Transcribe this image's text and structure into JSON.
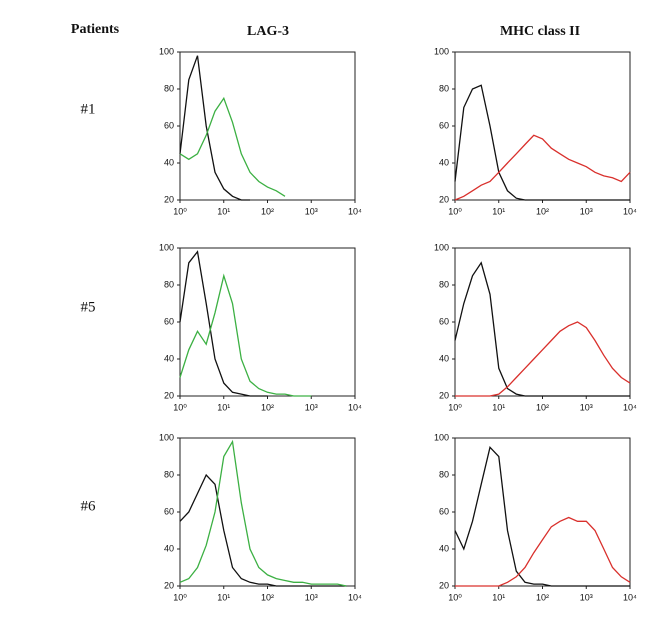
{
  "figure": {
    "corner_label": "Patients",
    "columns": [
      "LAG-3",
      "MHC class II"
    ],
    "rows": [
      "#1",
      "#5",
      "#6"
    ]
  },
  "chart_data": [
    {
      "type": "line",
      "log_x": true,
      "xlim": [
        1,
        10000
      ],
      "ylim": [
        20,
        100
      ],
      "xticks": [
        {
          "value": 1,
          "label": "10⁰"
        },
        {
          "value": 10,
          "label": "10¹"
        },
        {
          "value": 100,
          "label": "10²"
        },
        {
          "value": 1000,
          "label": "10³"
        },
        {
          "value": 10000,
          "label": "10⁴"
        }
      ],
      "yticks": [
        20,
        40,
        60,
        80,
        100
      ],
      "x": [
        1,
        1.585,
        2.512,
        3.981,
        6.31,
        10,
        15.85,
        25.12,
        39.81,
        63.1,
        100,
        158.5,
        251.2,
        398.1,
        631,
        1000,
        1585,
        2512,
        3981,
        6310,
        10000
      ],
      "series": [
        {
          "color": "#111111",
          "values": [
            45,
            85,
            98,
            60,
            35,
            26,
            22,
            20,
            20,
            null,
            null,
            null,
            null,
            null,
            null,
            null,
            null,
            null,
            null,
            null,
            null
          ]
        },
        {
          "color": "#3cb043",
          "values": [
            45,
            42,
            45,
            55,
            68,
            75,
            62,
            45,
            35,
            30,
            27,
            25,
            22,
            null,
            null,
            null,
            null,
            null,
            null,
            null,
            null
          ]
        }
      ]
    },
    {
      "type": "line",
      "log_x": true,
      "xlim": [
        1,
        10000
      ],
      "ylim": [
        20,
        100
      ],
      "xticks": [
        {
          "value": 1,
          "label": "10⁰"
        },
        {
          "value": 10,
          "label": "10¹"
        },
        {
          "value": 100,
          "label": "10²"
        },
        {
          "value": 1000,
          "label": "10³"
        },
        {
          "value": 10000,
          "label": "10⁴"
        }
      ],
      "yticks": [
        20,
        40,
        60,
        80,
        100
      ],
      "x": [
        1,
        1.585,
        2.512,
        3.981,
        6.31,
        10,
        15.85,
        25.12,
        39.81,
        63.1,
        100,
        158.5,
        251.2,
        398.1,
        631,
        1000,
        1585,
        2512,
        3981,
        6310,
        10000
      ],
      "series": [
        {
          "color": "#111111",
          "values": [
            30,
            70,
            80,
            82,
            60,
            35,
            25,
            21,
            20,
            20,
            20,
            20,
            20,
            20,
            20,
            20,
            20,
            20,
            20,
            20,
            20
          ]
        },
        {
          "color": "#d9302c",
          "values": [
            20,
            22,
            25,
            28,
            30,
            35,
            40,
            45,
            50,
            55,
            53,
            48,
            45,
            42,
            40,
            38,
            35,
            33,
            32,
            30,
            35
          ]
        }
      ]
    },
    {
      "type": "line",
      "log_x": true,
      "xlim": [
        1,
        10000
      ],
      "ylim": [
        20,
        100
      ],
      "xticks": [
        {
          "value": 1,
          "label": "10⁰"
        },
        {
          "value": 10,
          "label": "10¹"
        },
        {
          "value": 100,
          "label": "10²"
        },
        {
          "value": 1000,
          "label": "10³"
        },
        {
          "value": 10000,
          "label": "10⁴"
        }
      ],
      "yticks": [
        20,
        40,
        60,
        80,
        100
      ],
      "x": [
        1,
        1.585,
        2.512,
        3.981,
        6.31,
        10,
        15.85,
        25.12,
        39.81,
        63.1,
        100,
        158.5,
        251.2,
        398.1,
        631,
        1000,
        1585,
        2512,
        3981,
        6310,
        10000
      ],
      "series": [
        {
          "color": "#111111",
          "values": [
            60,
            92,
            98,
            70,
            40,
            27,
            22,
            21,
            20,
            20,
            20,
            null,
            null,
            null,
            null,
            null,
            null,
            null,
            null,
            null,
            null
          ]
        },
        {
          "color": "#3cb043",
          "values": [
            30,
            45,
            55,
            48,
            65,
            85,
            70,
            40,
            28,
            24,
            22,
            21,
            21,
            20,
            20,
            20,
            null,
            null,
            null,
            null,
            null
          ]
        }
      ]
    },
    {
      "type": "line",
      "log_x": true,
      "xlim": [
        1,
        10000
      ],
      "ylim": [
        20,
        100
      ],
      "xticks": [
        {
          "value": 1,
          "label": "10⁰"
        },
        {
          "value": 10,
          "label": "10¹"
        },
        {
          "value": 100,
          "label": "10²"
        },
        {
          "value": 1000,
          "label": "10³"
        },
        {
          "value": 10000,
          "label": "10⁴"
        }
      ],
      "yticks": [
        20,
        40,
        60,
        80,
        100
      ],
      "x": [
        1,
        1.585,
        2.512,
        3.981,
        6.31,
        10,
        15.85,
        25.12,
        39.81,
        63.1,
        100,
        158.5,
        251.2,
        398.1,
        631,
        1000,
        1585,
        2512,
        3981,
        6310,
        10000
      ],
      "series": [
        {
          "color": "#111111",
          "values": [
            50,
            70,
            85,
            92,
            75,
            35,
            24,
            21,
            20,
            20,
            20,
            20,
            20,
            20,
            20,
            20,
            20,
            20,
            20,
            20,
            20
          ]
        },
        {
          "color": "#d9302c",
          "values": [
            20,
            20,
            20,
            20,
            20,
            21,
            25,
            30,
            35,
            40,
            45,
            50,
            55,
            58,
            60,
            57,
            50,
            42,
            35,
            30,
            27
          ]
        }
      ]
    },
    {
      "type": "line",
      "log_x": true,
      "xlim": [
        1,
        10000
      ],
      "ylim": [
        20,
        100
      ],
      "xticks": [
        {
          "value": 1,
          "label": "10⁰"
        },
        {
          "value": 10,
          "label": "10¹"
        },
        {
          "value": 100,
          "label": "10²"
        },
        {
          "value": 1000,
          "label": "10³"
        },
        {
          "value": 10000,
          "label": "10⁴"
        }
      ],
      "yticks": [
        20,
        40,
        60,
        80,
        100
      ],
      "x": [
        1,
        1.585,
        2.512,
        3.981,
        6.31,
        10,
        15.85,
        25.12,
        39.81,
        63.1,
        100,
        158.5,
        251.2,
        398.1,
        631,
        1000,
        1585,
        2512,
        3981,
        6310,
        10000
      ],
      "series": [
        {
          "color": "#111111",
          "values": [
            55,
            60,
            70,
            80,
            75,
            50,
            30,
            24,
            22,
            21,
            21,
            20,
            20,
            20,
            20,
            20,
            20,
            20,
            20,
            20,
            null
          ]
        },
        {
          "color": "#3cb043",
          "values": [
            22,
            24,
            30,
            42,
            60,
            90,
            98,
            65,
            40,
            30,
            26,
            24,
            23,
            22,
            22,
            21,
            21,
            21,
            21,
            20,
            null
          ]
        }
      ]
    },
    {
      "type": "line",
      "log_x": true,
      "xlim": [
        1,
        10000
      ],
      "ylim": [
        20,
        100
      ],
      "xticks": [
        {
          "value": 1,
          "label": "10⁰"
        },
        {
          "value": 10,
          "label": "10¹"
        },
        {
          "value": 100,
          "label": "10²"
        },
        {
          "value": 1000,
          "label": "10³"
        },
        {
          "value": 10000,
          "label": "10⁴"
        }
      ],
      "yticks": [
        20,
        40,
        60,
        80,
        100
      ],
      "x": [
        1,
        1.585,
        2.512,
        3.981,
        6.31,
        10,
        15.85,
        25.12,
        39.81,
        63.1,
        100,
        158.5,
        251.2,
        398.1,
        631,
        1000,
        1585,
        2512,
        3981,
        6310,
        10000
      ],
      "series": [
        {
          "color": "#111111",
          "values": [
            50,
            40,
            55,
            75,
            95,
            90,
            50,
            28,
            22,
            21,
            21,
            20,
            20,
            20,
            20,
            20,
            20,
            20,
            20,
            20,
            20
          ]
        },
        {
          "color": "#d9302c",
          "values": [
            20,
            20,
            20,
            20,
            20,
            20,
            22,
            25,
            30,
            38,
            45,
            52,
            55,
            57,
            55,
            55,
            50,
            40,
            30,
            25,
            22
          ]
        }
      ]
    }
  ]
}
